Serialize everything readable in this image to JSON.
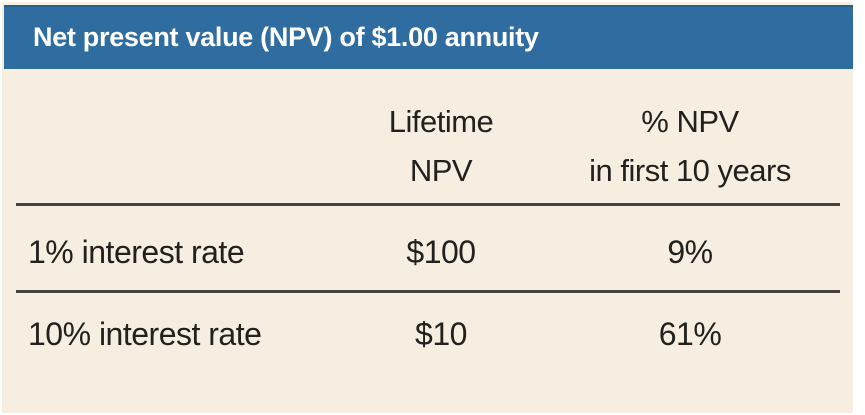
{
  "figure": {
    "title": "Net present value (NPV) of $1.00 annuity",
    "colors": {
      "header_bg": "#2f6da1",
      "panel_bg": "#f5eee1",
      "title_text": "#ffffff",
      "body_text": "#23211d",
      "rule": "#45433d"
    }
  },
  "table": {
    "col2_line1": "Lifetime",
    "col2_line2": "NPV",
    "col3_line1": "% NPV",
    "col3_line2": "in first 10 years",
    "rows": [
      {
        "label": "1% interest rate",
        "lifetime_npv": "$100",
        "pct_first_10_years": "9%"
      },
      {
        "label": "10% interest rate",
        "lifetime_npv": "$10",
        "pct_first_10_years": "61%"
      }
    ]
  },
  "chart_data": {
    "type": "table",
    "title": "Net present value (NPV) of $1.00 annuity",
    "columns": [
      "",
      "Lifetime NPV",
      "% NPV in first 10 years"
    ],
    "rows": [
      [
        "1% interest rate",
        "$100",
        "9%"
      ],
      [
        "10% interest rate",
        "$10",
        "61%"
      ]
    ]
  }
}
